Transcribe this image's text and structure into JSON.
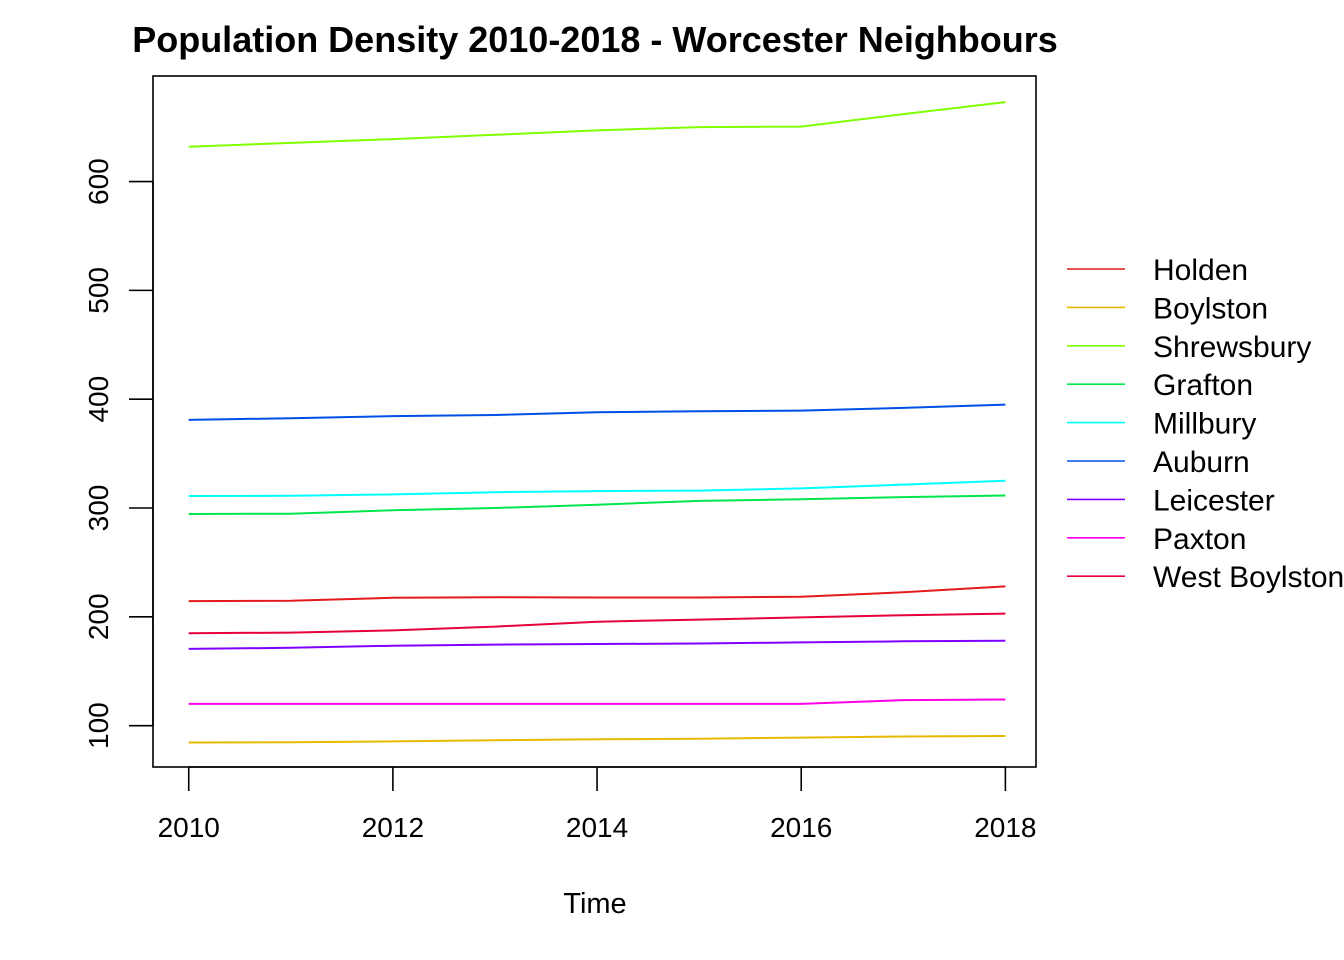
{
  "chart_data": {
    "type": "line",
    "title": "Population Density 2010-2018 - Worcester Neighbours",
    "xlabel": "Time",
    "ylabel": "",
    "x": [
      2010,
      2011,
      2012,
      2013,
      2014,
      2015,
      2016,
      2017,
      2018
    ],
    "x_ticks": [
      2010,
      2012,
      2014,
      2016,
      2018
    ],
    "y_ticks": [
      100,
      200,
      300,
      400,
      500,
      600
    ],
    "xlim": [
      2009.65,
      2018.3
    ],
    "ylim": [
      62,
      697
    ],
    "grid": false,
    "legend_position": "right",
    "series": [
      {
        "name": "Holden",
        "color": "#e41a1c",
        "values": [
          214.5,
          214.8,
          217.5,
          218.0,
          217.8,
          217.8,
          218.5,
          222.5,
          228.0
        ]
      },
      {
        "name": "Boylston",
        "color": "#e6b800",
        "values": [
          84.5,
          84.7,
          85.5,
          86.5,
          87.5,
          88.0,
          89.0,
          90.0,
          90.5
        ]
      },
      {
        "name": "Shrewsbury",
        "color": "#80ff00",
        "values": [
          632.0,
          635.5,
          639.0,
          643.0,
          647.0,
          650.0,
          650.5,
          662.0,
          673.0
        ]
      },
      {
        "name": "Grafton",
        "color": "#00e64d",
        "values": [
          294.5,
          294.8,
          298.0,
          300.0,
          303.0,
          306.5,
          308.0,
          310.0,
          311.5
        ]
      },
      {
        "name": "Millbury",
        "color": "#00ffff",
        "values": [
          311.0,
          311.2,
          312.5,
          314.5,
          315.5,
          316.0,
          318.0,
          321.5,
          325.0
        ]
      },
      {
        "name": "Auburn",
        "color": "#0050e6",
        "values": [
          381.0,
          382.5,
          384.5,
          385.5,
          388.0,
          389.0,
          389.5,
          392.0,
          395.0
        ]
      },
      {
        "name": "Leicester",
        "color": "#8000ff",
        "values": [
          170.5,
          171.5,
          173.5,
          174.5,
          175.0,
          175.5,
          176.5,
          177.5,
          178.0
        ]
      },
      {
        "name": "Paxton",
        "color": "#ff00e6",
        "values": [
          120.0,
          120.0,
          120.0,
          120.0,
          120.0,
          120.0,
          120.0,
          123.5,
          124.0
        ]
      },
      {
        "name": "West Boylston",
        "color": "#e6003c",
        "values": [
          185.0,
          185.5,
          187.5,
          191.0,
          195.5,
          197.5,
          199.5,
          201.5,
          203.0
        ]
      }
    ]
  }
}
